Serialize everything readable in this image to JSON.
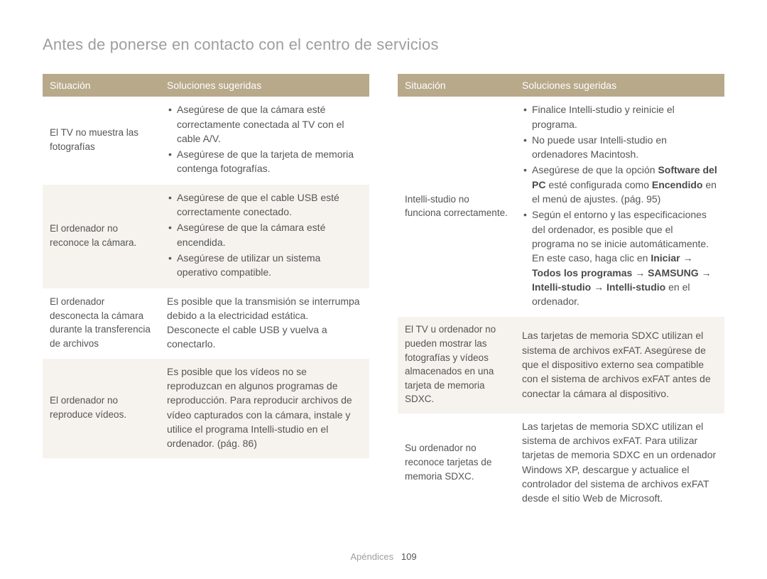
{
  "page_title": "Antes de ponerse en contacto con el centro de servicios",
  "footer": {
    "section": "Apéndices",
    "page_num": "109"
  },
  "colors": {
    "header_bg": "#b7a98a",
    "header_text": "#ffffff",
    "alt_row_bg": "#f6f3ee",
    "text": "#5a5a5a",
    "title": "#9e9e9e"
  },
  "left_table": {
    "headers": [
      "Situación",
      "Soluciones sugeridas"
    ],
    "rows": [
      {
        "situation": "El TV no muestra las fotografías",
        "type": "list",
        "items": [
          "Asegúrese de que la cámara esté correctamente conectada al TV con el cable A/V.",
          "Asegúrese de que la tarjeta de memoria contenga fotografías."
        ]
      },
      {
        "situation": "El ordenador no reconoce la cámara.",
        "type": "list",
        "items": [
          "Asegúrese de que el cable USB esté correctamente conectado.",
          "Asegúrese de que la cámara esté encendida.",
          "Asegúrese de utilizar un sistema operativo compatible."
        ]
      },
      {
        "situation": "El ordenador desconecta la cámara durante la transferencia de archivos",
        "type": "plain",
        "text": "Es posible que la transmisión se interrumpa debido a la electricidad estática. Desconecte el cable USB y vuelva a conectarlo."
      },
      {
        "situation": "El ordenador no reproduce vídeos.",
        "type": "plain",
        "text": "Es posible que los vídeos no se reproduzcan en algunos programas de reproducción. Para reproducir archivos de vídeo capturados con la cámara, instale y utilice el programa Intelli-studio en el ordenador. (pág. 86)"
      }
    ]
  },
  "right_table": {
    "headers": [
      "Situación",
      "Soluciones sugeridas"
    ],
    "rows": [
      {
        "situation": "Intelli-studio no funciona correctamente.",
        "type": "html",
        "html": "<ul><li>Finalice Intelli-studio y reinicie el programa.</li><li>No puede usar Intelli-studio en ordenadores Macintosh.</li><li>Asegúrese de que la opción <b>Software del PC</b> esté configurada como <b>Encendido</b> en el menú de ajustes. (pág. 95)</li><li>Según el entorno y las especificaciones del ordenador, es posible que el programa no se inicie automáticamente. En este caso, haga clic en <b>Iniciar → Todos los programas → SAMSUNG → Intelli-studio → Intelli-studio</b> en el ordenador.</li></ul>"
      },
      {
        "situation": "El TV u ordenador no pueden mostrar las fotografías y vídeos almacenados en una tarjeta de memoria SDXC.",
        "type": "plain",
        "text": "Las tarjetas de memoria SDXC utilizan el sistema de archivos exFAT. Asegúrese de que el dispositivo externo sea compatible con el sistema de archivos exFAT antes de conectar la cámara al dispositivo."
      },
      {
        "situation": "Su ordenador no reconoce tarjetas de memoria SDXC.",
        "type": "plain",
        "text": "Las tarjetas de memoria SDXC utilizan el sistema de archivos exFAT. Para utilizar tarjetas de memoria SDXC en un ordenador Windows XP, descargue y actualice el controlador del sistema de archivos exFAT desde el sitio Web de Microsoft."
      }
    ]
  }
}
